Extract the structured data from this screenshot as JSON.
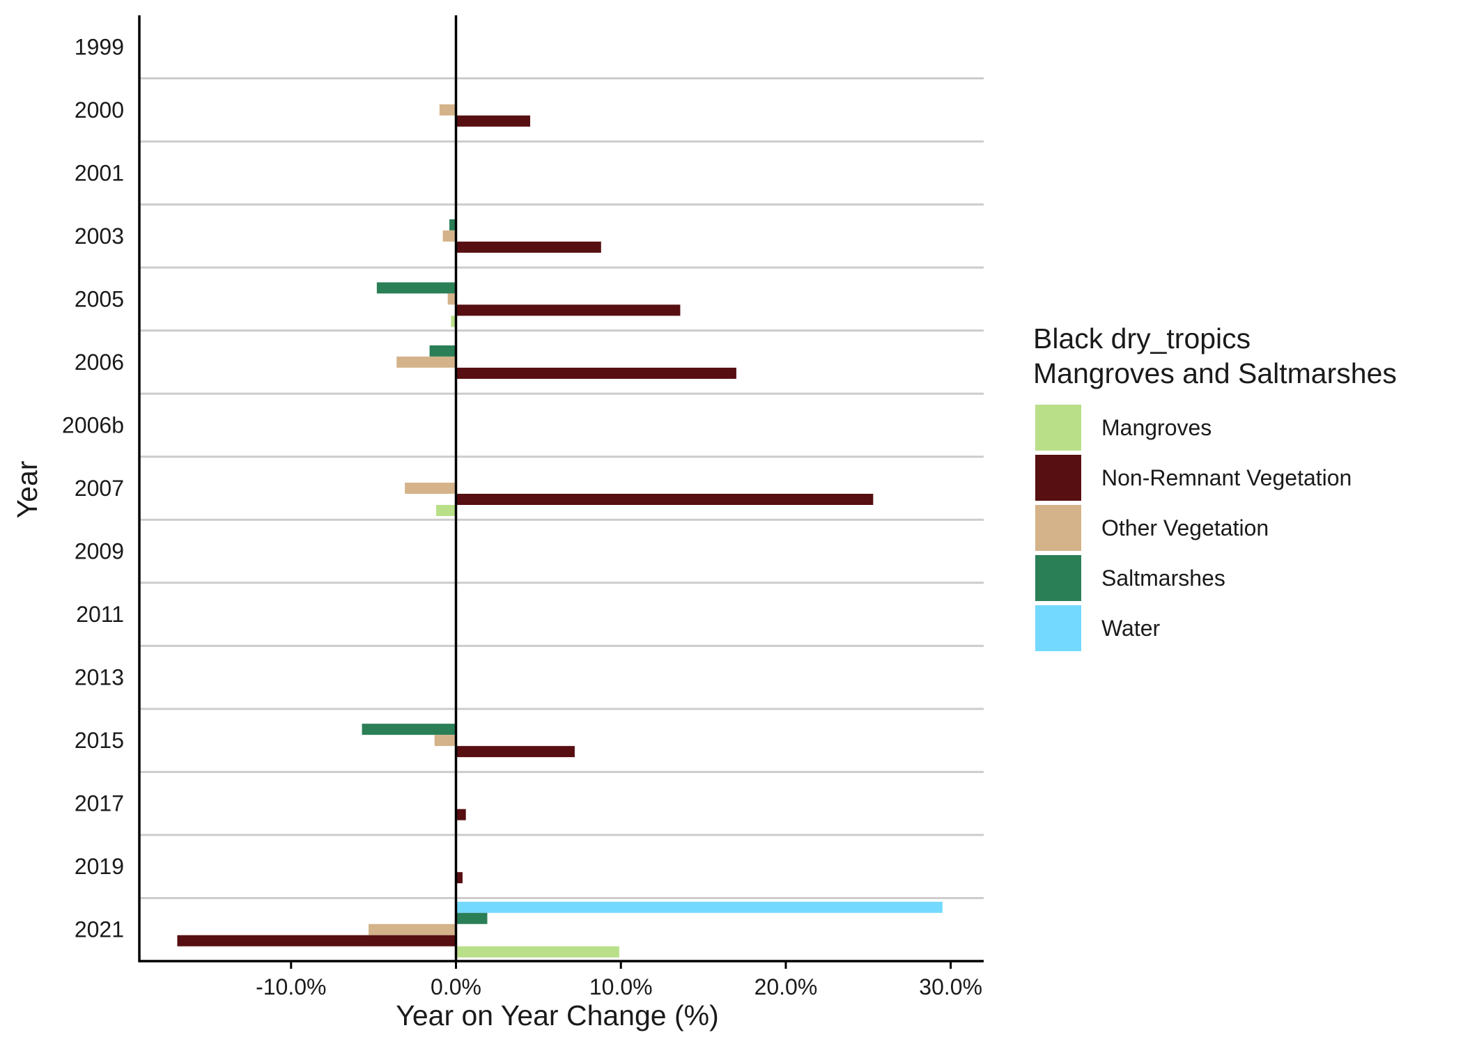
{
  "chart_data": {
    "type": "bar",
    "orientation": "horizontal",
    "title": "",
    "xlabel": "Year on Year Change (%)",
    "ylabel": "Year",
    "xlim": [
      -19.2,
      32.0
    ],
    "x_ticks": [
      {
        "value": -10,
        "label": "-10.0%"
      },
      {
        "value": 0,
        "label": "0.0%"
      },
      {
        "value": 10,
        "label": "10.0%"
      },
      {
        "value": 20,
        "label": "20.0%"
      },
      {
        "value": 30,
        "label": "30.0%"
      }
    ],
    "categories": [
      "1999",
      "2000",
      "2001",
      "2003",
      "2005",
      "2006",
      "2006b",
      "2007",
      "2009",
      "2011",
      "2013",
      "2015",
      "2017",
      "2019",
      "2021"
    ],
    "grid": {
      "horizontal_separators": true,
      "vertical": false
    },
    "legend": {
      "title_lines": [
        "Black dry_tropics",
        "Mangroves and Saltmarshes"
      ],
      "position": "right"
    },
    "series": [
      {
        "name": "Water",
        "color": "#74D9FF",
        "values": [
          null,
          null,
          null,
          null,
          null,
          null,
          null,
          null,
          null,
          null,
          null,
          null,
          null,
          null,
          29.5
        ]
      },
      {
        "name": "Saltmarshes",
        "color": "#2A7F57",
        "values": [
          null,
          null,
          null,
          -0.4,
          -4.8,
          -1.6,
          null,
          null,
          null,
          null,
          null,
          -5.7,
          null,
          null,
          1.9
        ]
      },
      {
        "name": "Other Vegetation",
        "color": "#D4B38A",
        "values": [
          null,
          -1.0,
          null,
          -0.8,
          -0.5,
          -3.6,
          null,
          -3.1,
          null,
          null,
          null,
          -1.3,
          null,
          null,
          -5.3
        ]
      },
      {
        "name": "Non-Remnant Vegetation",
        "color": "#570F12",
        "values": [
          null,
          4.5,
          null,
          8.8,
          13.6,
          17.0,
          null,
          25.3,
          null,
          null,
          null,
          7.2,
          0.6,
          0.4,
          -16.9
        ]
      },
      {
        "name": "Mangroves",
        "color": "#B9DF89",
        "values": [
          null,
          null,
          null,
          null,
          -0.3,
          null,
          null,
          -1.2,
          null,
          null,
          null,
          null,
          null,
          null,
          9.9
        ]
      }
    ],
    "legend_order": [
      "Mangroves",
      "Non-Remnant Vegetation",
      "Other Vegetation",
      "Saltmarshes",
      "Water"
    ]
  }
}
